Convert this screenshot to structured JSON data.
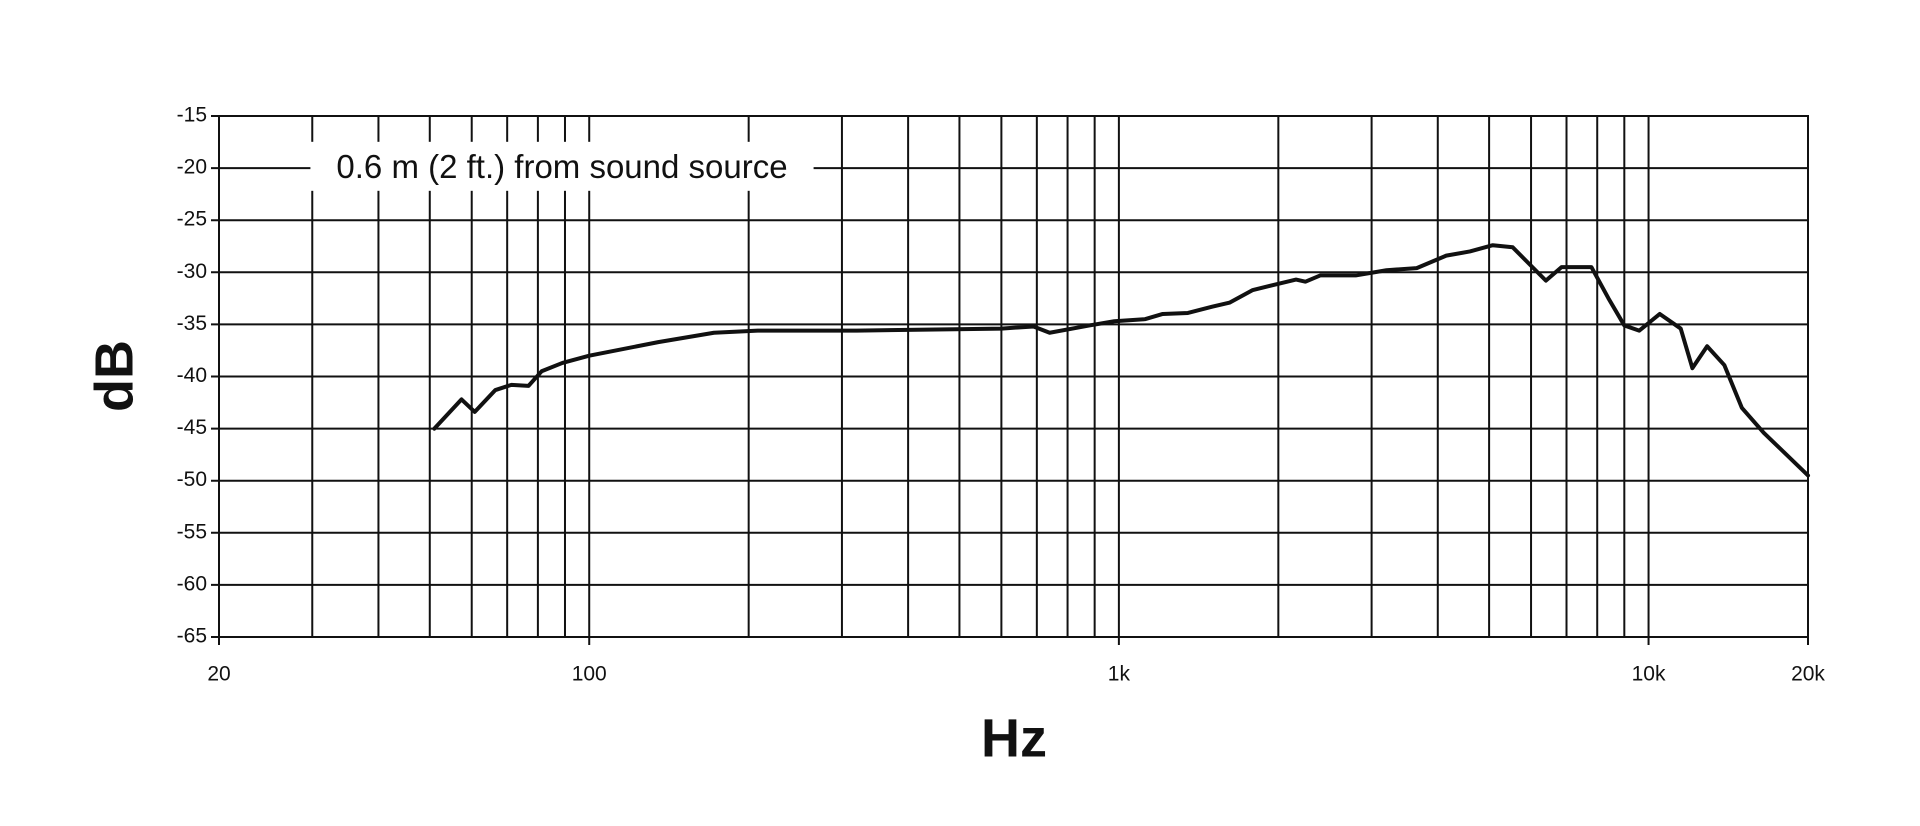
{
  "chart_data": {
    "type": "line",
    "annotation": "0.6 m (2 ft.) from sound source",
    "xlabel": "Hz",
    "ylabel": "dB",
    "xscale": "log",
    "grid": true,
    "xlim": [
      20,
      20000
    ],
    "ylim": [
      -65,
      -15
    ],
    "xticks": [
      20,
      100,
      {
        "value": 1000,
        "label": "1k"
      },
      {
        "value": 10000,
        "label": "10k"
      },
      {
        "value": 20000,
        "label": "20k"
      }
    ],
    "xgrid": [
      30,
      40,
      50,
      60,
      70,
      80,
      90,
      200,
      300,
      400,
      500,
      600,
      700,
      800,
      900,
      2000,
      3000,
      4000,
      5000,
      6000,
      7000,
      8000,
      9000
    ],
    "yticks": [
      -15,
      -20,
      -25,
      -30,
      -35,
      -40,
      -45,
      -50,
      -55,
      -60,
      -65
    ],
    "series": [
      {
        "color": "#111111",
        "x": [
          51,
          57.4,
          60.8,
          66.5,
          71.3,
          76.8,
          81.3,
          89,
          100,
          135,
          172,
          208,
          320,
          600,
          690,
          740,
          880,
          980,
          1120,
          1210,
          1350,
          1500,
          1620,
          1790,
          2000,
          2160,
          2250,
          2400,
          2800,
          3200,
          3650,
          4150,
          4600,
          5080,
          5540,
          5900,
          6400,
          6850,
          7800,
          8400,
          9000,
          9600,
          10500,
          11500,
          12100,
          12900,
          13900,
          15000,
          16500,
          20000
        ],
        "values": [
          -45,
          -42.2,
          -43.4,
          -41.3,
          -40.8,
          -40.9,
          -39.5,
          -38.7,
          -38,
          -36.7,
          -35.8,
          -35.6,
          -35.6,
          -35.4,
          -35.2,
          -35.8,
          -35.1,
          -34.7,
          -34.5,
          -34,
          -33.9,
          -33.3,
          -32.9,
          -31.7,
          -31.1,
          -30.7,
          -30.9,
          -30.3,
          -30.3,
          -29.8,
          -29.6,
          -28.4,
          -28,
          -27.4,
          -27.6,
          -29,
          -30.8,
          -29.5,
          -29.5,
          -32.5,
          -35.1,
          -35.6,
          -34,
          -35.4,
          -39.2,
          -37.1,
          -38.9,
          -43,
          -45.4,
          -49.5
        ]
      }
    ]
  }
}
